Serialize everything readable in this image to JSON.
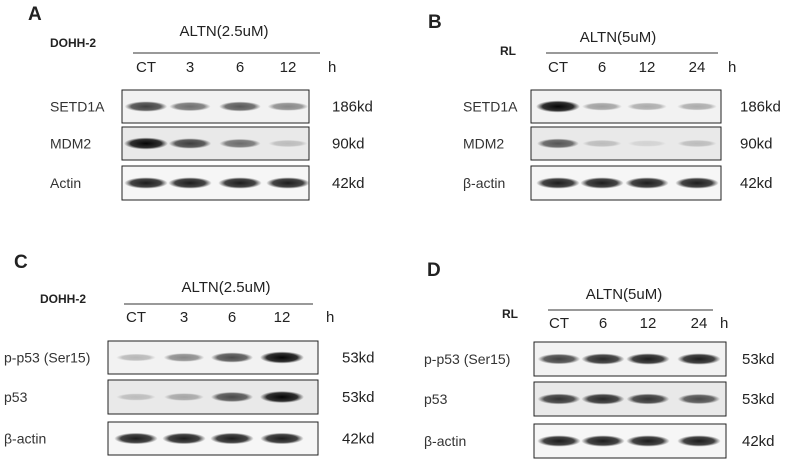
{
  "panels": [
    {
      "label": "A",
      "cell_line": "DOHH-2",
      "condition": "ALTN(2.5uM)",
      "lanes": [
        "CT",
        "3",
        "6",
        "12"
      ],
      "time_unit": "h",
      "rows": [
        {
          "name": "SETD1A",
          "size": "186kd",
          "bands": [
            0.75,
            0.55,
            0.65,
            0.45
          ]
        },
        {
          "name": "MDM2",
          "size": "90kd",
          "bands": [
            1.0,
            0.75,
            0.55,
            0.2
          ]
        },
        {
          "name": "Actin",
          "size": "42kd",
          "bands": [
            0.9,
            0.9,
            0.9,
            0.9
          ]
        }
      ]
    },
    {
      "label": "B",
      "cell_line": "RL",
      "condition": "ALTN(5uM)",
      "lanes": [
        "CT",
        "6",
        "12",
        "24"
      ],
      "time_unit": "h",
      "rows": [
        {
          "name": "SETD1A",
          "size": "186kd",
          "bands": [
            1.0,
            0.35,
            0.3,
            0.3
          ]
        },
        {
          "name": "MDM2",
          "size": "90kd",
          "bands": [
            0.65,
            0.2,
            0.1,
            0.2
          ]
        },
        {
          "name": "β-actin",
          "size": "42kd",
          "bands": [
            0.9,
            0.9,
            0.9,
            0.9
          ]
        }
      ]
    },
    {
      "label": "C",
      "cell_line": "DOHH-2",
      "condition": "ALTN(2.5uM)",
      "lanes": [
        "CT",
        "3",
        "6",
        "12"
      ],
      "time_unit": "h",
      "rows": [
        {
          "name": "p-p53 (Ser15)",
          "size": "53kd",
          "bands": [
            0.25,
            0.45,
            0.7,
            1.0
          ]
        },
        {
          "name": "p53",
          "size": "53kd",
          "bands": [
            0.2,
            0.3,
            0.7,
            1.0
          ]
        },
        {
          "name": "β-actin",
          "size": "42kd",
          "bands": [
            0.9,
            0.9,
            0.9,
            0.9
          ]
        }
      ]
    },
    {
      "label": "D",
      "cell_line": "RL",
      "condition": "ALTN(5uM)",
      "lanes": [
        "CT",
        "6",
        "12",
        "24"
      ],
      "time_unit": "h",
      "rows": [
        {
          "name": "p-p53 (Ser15)",
          "size": "53kd",
          "bands": [
            0.75,
            0.85,
            0.9,
            0.9
          ]
        },
        {
          "name": "p53",
          "size": "53kd",
          "bands": [
            0.8,
            0.85,
            0.8,
            0.7
          ]
        },
        {
          "name": "β-actin",
          "size": "42kd",
          "bands": [
            0.9,
            0.9,
            0.9,
            0.9
          ]
        }
      ]
    }
  ]
}
